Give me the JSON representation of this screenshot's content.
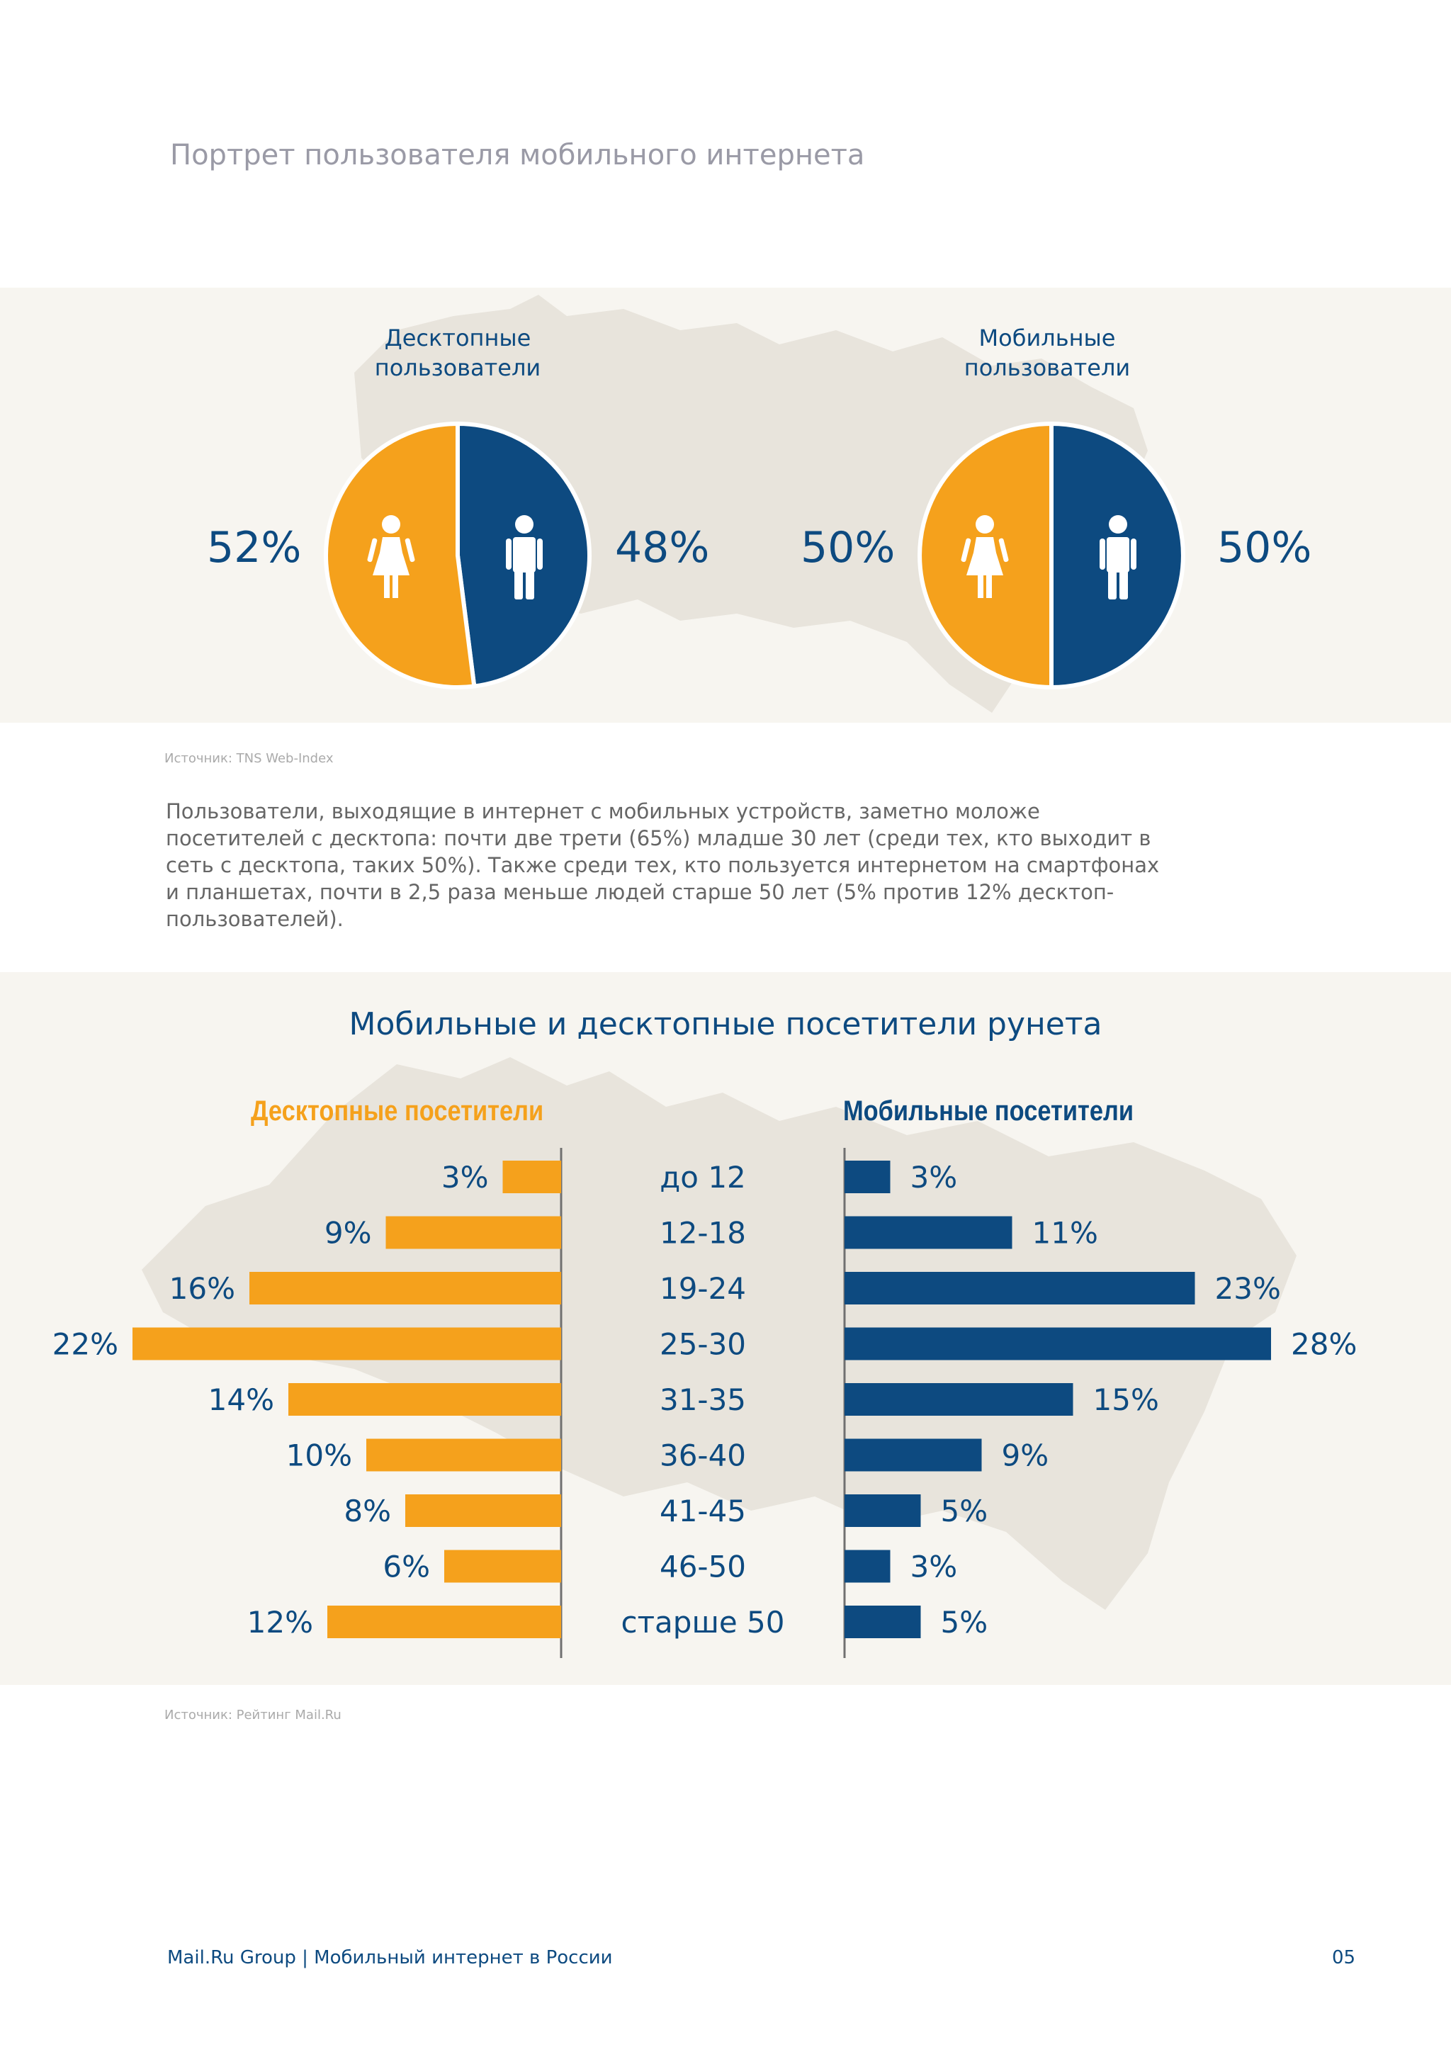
{
  "page_title": "Портрет пользователя мобильного интернета",
  "colors": {
    "female": "#f5a11c",
    "male": "#0d4a80",
    "text_blue": "#0d4a80",
    "band": "#f7f5f0",
    "map": "#e8e4dc"
  },
  "icons": {
    "female": "woman-icon",
    "male": "man-icon"
  },
  "pies": [
    {
      "title": "Десктопные пользователи",
      "female_label": "52%",
      "male_label": "48%",
      "female_value": 52,
      "male_value": 48
    },
    {
      "title": "Мобильные пользователи",
      "female_label": "50%",
      "male_label": "50%",
      "female_value": 50,
      "male_value": 50
    }
  ],
  "source1": "Источник: TNS Web-Index",
  "body_text": "Пользователи, выходящие в интернет с мобильных устройств, заметно моложе посетителей с десктопа: почти две трети (65%) младше 30 лет (среди тех, кто выходит в сеть с десктопа, таких 50%). Также среди тех, кто пользуется интернетом на смартфонах и планшетах, почти в 2,5 раза меньше людей старше 50 лет (5% против 12% десктоп-пользователей).",
  "chart_data": [
    {
      "type": "pie",
      "title": "Десктопные пользователи",
      "categories": [
        "Женщины",
        "Мужчины"
      ],
      "values": [
        52,
        48
      ]
    },
    {
      "type": "pie",
      "title": "Мобильные пользователи",
      "categories": [
        "Женщины",
        "Мужчины"
      ],
      "values": [
        50,
        50
      ]
    },
    {
      "type": "bar",
      "title": "Мобильные и десктопные посетители рунета",
      "categories": [
        "до 12",
        "12-18",
        "19-24",
        "25-30",
        "31-35",
        "36-40",
        "41-45",
        "46-50",
        "старше 50"
      ],
      "series": [
        {
          "name": "Десктопные посетители",
          "values": [
            3,
            9,
            16,
            22,
            14,
            10,
            8,
            6,
            12
          ],
          "labels": [
            "3%",
            "9%",
            "16%",
            "22%",
            "14%",
            "10%",
            "8%",
            "6%",
            "12%"
          ]
        },
        {
          "name": "Мобильные посетители",
          "values": [
            3,
            11,
            23,
            28,
            15,
            9,
            5,
            3,
            5
          ],
          "labels": [
            "3%",
            "11%",
            "23%",
            "28%",
            "15%",
            "9%",
            "5%",
            "3%",
            "5%"
          ]
        }
      ]
    }
  ],
  "source2": "Источник: Рейтинг Mail.Ru",
  "footer": {
    "left": "Mail.Ru Group  |  Мобильный интернет в России",
    "page_number": "05"
  }
}
